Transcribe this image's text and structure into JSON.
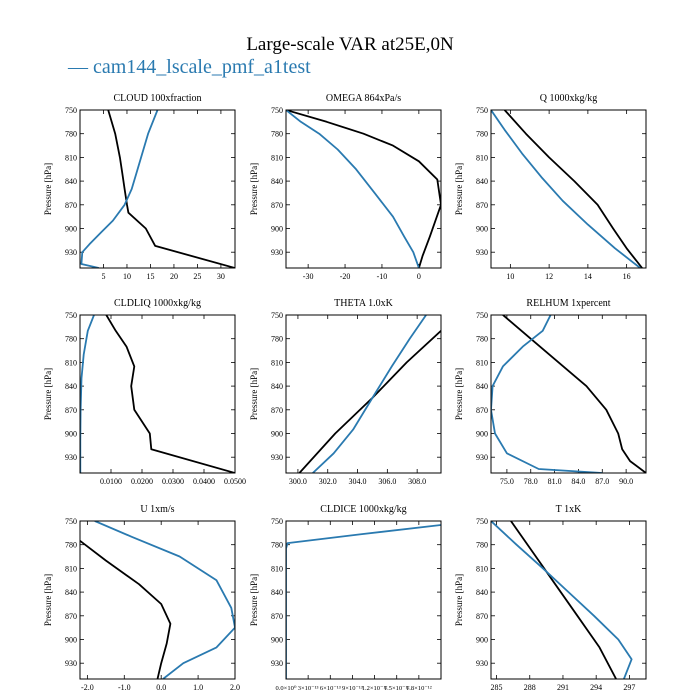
{
  "figure": {
    "title": "Large-scale VAR at25E,0N",
    "legend": {
      "label": "cam144_lscale_pmf_a1test",
      "symbol": "—",
      "color": "#2a7ab0"
    },
    "ref_color": "#000000"
  },
  "chart_data": [
    {
      "type": "line",
      "title": "CLOUD  100xfraction",
      "ylabel": "Pressure [hPa]",
      "xlim": [
        0,
        33
      ],
      "ylim": [
        750,
        950
      ],
      "xticks": [
        5,
        10,
        15,
        20,
        25,
        30
      ],
      "xtick_labels": [
        "5",
        "10",
        "15",
        "20",
        "25",
        "30"
      ],
      "yticks": [
        750,
        780,
        810,
        840,
        870,
        900,
        930
      ],
      "ytick_labels": [
        "750",
        "780",
        "810",
        "840",
        "870",
        "900",
        "930"
      ],
      "series": [
        {
          "name": "ref",
          "x": [
            6.0,
            7.5,
            8.5,
            9.0,
            9.5,
            10.0,
            10.3,
            14.0,
            16.0,
            33.0
          ],
          "y": [
            750,
            780,
            810,
            830,
            850,
            870,
            880,
            900,
            922,
            950
          ]
        },
        {
          "name": "cam144_lscale_pmf_a1test",
          "x": [
            16.5,
            14.5,
            13.0,
            12.0,
            11.0,
            9.5,
            7.0,
            4.5,
            2.0,
            0.5,
            0.3,
            4.0
          ],
          "y": [
            750,
            780,
            810,
            830,
            850,
            870,
            890,
            905,
            920,
            930,
            945,
            950
          ]
        }
      ]
    },
    {
      "type": "line",
      "title": "OMEGA  864xPa/s",
      "ylabel": "Pressure [hPa]",
      "xlim": [
        -36,
        6
      ],
      "ylim": [
        750,
        950
      ],
      "xticks": [
        -30,
        -20,
        -10,
        0
      ],
      "xtick_labels": [
        "-30",
        "-20",
        "-10",
        "0"
      ],
      "yticks": [
        750,
        780,
        810,
        840,
        870,
        900,
        930
      ],
      "ytick_labels": [
        "750",
        "780",
        "810",
        "840",
        "870",
        "900",
        "930"
      ],
      "series": [
        {
          "name": "ref",
          "x": [
            -36,
            -25,
            -15,
            -7,
            0,
            5,
            6,
            3,
            1,
            0
          ],
          "y": [
            750,
            765,
            780,
            795,
            815,
            838,
            870,
            910,
            935,
            950
          ]
        },
        {
          "name": "cam144_lscale_pmf_a1test",
          "x": [
            -36,
            -32,
            -27,
            -22,
            -17,
            -12,
            -7,
            -4,
            -1.5,
            0
          ],
          "y": [
            750,
            765,
            780,
            800,
            825,
            855,
            885,
            910,
            930,
            950
          ]
        }
      ]
    },
    {
      "type": "line",
      "title": "Q  1000xkg/kg",
      "ylabel": "Pressure [hPa]",
      "xlim": [
        9,
        17
      ],
      "ylim": [
        750,
        950
      ],
      "xticks": [
        10,
        12,
        14,
        16
      ],
      "xtick_labels": [
        "10",
        "12",
        "14",
        "16"
      ],
      "yticks": [
        750,
        780,
        810,
        840,
        870,
        900,
        930
      ],
      "ytick_labels": [
        "750",
        "780",
        "810",
        "840",
        "870",
        "900",
        "930"
      ],
      "series": [
        {
          "name": "ref",
          "x": [
            9.7,
            10.8,
            12.0,
            13.3,
            14.5,
            15.3,
            16.0,
            16.8
          ],
          "y": [
            750,
            780,
            810,
            840,
            870,
            900,
            925,
            950
          ]
        },
        {
          "name": "cam144_lscale_pmf_a1test",
          "x": [
            9.0,
            9.7,
            10.6,
            11.6,
            12.7,
            14.0,
            15.4,
            16.7
          ],
          "y": [
            750,
            775,
            805,
            835,
            865,
            895,
            925,
            950
          ]
        }
      ]
    },
    {
      "type": "line",
      "title": "CLDLIQ  1000xkg/kg",
      "ylabel": "Pressure [hPa]",
      "xlim": [
        0,
        0.05
      ],
      "ylim": [
        750,
        950
      ],
      "xticks": [
        0.01,
        0.02,
        0.03,
        0.04,
        0.05
      ],
      "xtick_labels": [
        "0.0100",
        "0.0200",
        "0.0300",
        "0.0400",
        "0.0500"
      ],
      "yticks": [
        750,
        780,
        810,
        840,
        870,
        900,
        930
      ],
      "ytick_labels": [
        "750",
        "780",
        "810",
        "840",
        "870",
        "900",
        "930"
      ],
      "series": [
        {
          "name": "ref",
          "x": [
            0.0085,
            0.0115,
            0.015,
            0.0175,
            0.0165,
            0.0175,
            0.0225,
            0.023,
            0.05
          ],
          "y": [
            750,
            770,
            790,
            815,
            840,
            870,
            900,
            920,
            950
          ]
        },
        {
          "name": "cam144_lscale_pmf_a1test",
          "x": [
            0.0045,
            0.0025,
            0.0012,
            0.0005,
            0.0002,
            0.0001,
            0.0001
          ],
          "y": [
            750,
            770,
            800,
            830,
            870,
            910,
            950
          ]
        }
      ]
    },
    {
      "type": "line",
      "title": "THETA  1.0xK",
      "ylabel": "Pressure [hPa]",
      "xlim": [
        299.2,
        309.6
      ],
      "ylim": [
        750,
        950
      ],
      "xticks": [
        300.0,
        302.0,
        304.0,
        306.0,
        308.0
      ],
      "xtick_labels": [
        "300.0",
        "302.0",
        "304.0",
        "306.0",
        "308.0"
      ],
      "yticks": [
        750,
        780,
        810,
        840,
        870,
        900,
        930
      ],
      "ytick_labels": [
        "750",
        "780",
        "810",
        "840",
        "870",
        "900",
        "930"
      ],
      "series": [
        {
          "name": "ref",
          "x": [
            309.6,
            307.3,
            305.0,
            302.5,
            300.1
          ],
          "y": [
            770,
            810,
            855,
            900,
            950
          ]
        },
        {
          "name": "cam144_lscale_pmf_a1test",
          "x": [
            308.6,
            307.5,
            306.3,
            305.0,
            303.7,
            302.4,
            301.0
          ],
          "y": [
            750,
            780,
            815,
            855,
            895,
            925,
            950
          ]
        }
      ]
    },
    {
      "type": "line",
      "title": "RELHUM  1xpercent",
      "ylabel": "Pressure [hPa]",
      "xlim": [
        73,
        92.5
      ],
      "ylim": [
        750,
        950
      ],
      "xticks": [
        75.0,
        78.0,
        81.0,
        84.0,
        87.0,
        90.0
      ],
      "xtick_labels": [
        "75.0",
        "78.0",
        "81.0",
        "84.0",
        "87.0",
        "90.0"
      ],
      "yticks": [
        750,
        780,
        810,
        840,
        870,
        900,
        930
      ],
      "ytick_labels": [
        "750",
        "780",
        "810",
        "840",
        "870",
        "900",
        "930"
      ],
      "series": [
        {
          "name": "ref",
          "x": [
            74.5,
            78.0,
            81.5,
            85.0,
            87.5,
            89.0,
            89.5,
            90.5,
            92.5
          ],
          "y": [
            750,
            780,
            810,
            840,
            870,
            900,
            920,
            935,
            950
          ]
        },
        {
          "name": "cam144_lscale_pmf_a1test",
          "x": [
            80.5,
            79.5,
            77.0,
            74.5,
            73.2,
            73.0,
            73.5,
            75.0,
            79.0,
            87.0
          ],
          "y": [
            750,
            770,
            790,
            815,
            840,
            870,
            900,
            925,
            945,
            950
          ]
        }
      ]
    },
    {
      "type": "line",
      "title": "U  1xm/s",
      "ylabel": "Pressure [hPa]",
      "xlim": [
        -2.2,
        2.0
      ],
      "ylim": [
        750,
        950
      ],
      "xticks": [
        -2.0,
        -1.0,
        0.0,
        1.0,
        2.0
      ],
      "xtick_labels": [
        "-2.0",
        "-1.0",
        "0.0",
        "1.0",
        "2.0"
      ],
      "yticks": [
        750,
        780,
        810,
        840,
        870,
        900,
        930
      ],
      "ytick_labels": [
        "750",
        "780",
        "810",
        "840",
        "870",
        "900",
        "930"
      ],
      "series": [
        {
          "name": "ref",
          "x": [
            -2.2,
            -1.5,
            -0.6,
            0.0,
            0.25,
            0.15,
            0.0,
            -0.1
          ],
          "y": [
            775,
            800,
            830,
            855,
            880,
            905,
            930,
            950
          ]
        },
        {
          "name": "cam144_lscale_pmf_a1test",
          "x": [
            -1.8,
            -0.8,
            0.5,
            1.5,
            1.9,
            2.0,
            1.5,
            0.6,
            0.05
          ],
          "y": [
            750,
            770,
            795,
            825,
            860,
            885,
            910,
            930,
            950
          ]
        }
      ]
    },
    {
      "type": "line",
      "title": "CLDICE  1000xkg/kg",
      "ylabel": "Pressure [hPa]",
      "xlim": [
        0,
        2.1e-12
      ],
      "ylim": [
        750,
        950
      ],
      "xticks": [
        0,
        3e-13,
        6e-13,
        9e-13,
        1.2e-12,
        1.5e-12,
        1.8e-12
      ],
      "xtick_labels": [
        "0.0×10⁰",
        "3×10⁻¹³",
        "6×10⁻¹³",
        "9×10⁻¹³",
        "1.2×10⁻¹²",
        "1.5×10⁻¹²",
        "1.8×10⁻¹²"
      ],
      "yticks": [
        750,
        780,
        810,
        840,
        870,
        900,
        930
      ],
      "ytick_labels": [
        "750",
        "780",
        "810",
        "840",
        "870",
        "900",
        "930"
      ],
      "series": [
        {
          "name": "cam144_lscale_pmf_a1test",
          "x": [
            2.1e-12,
            1e-12,
            2e-14,
            0,
            0
          ],
          "y": [
            755,
            767,
            778,
            785,
            950
          ]
        }
      ]
    },
    {
      "type": "line",
      "title": "T  1xK",
      "ylabel": "Pressure [hPa]",
      "xlim": [
        284.5,
        298.5
      ],
      "ylim": [
        750,
        950
      ],
      "xticks": [
        285,
        288,
        291,
        294,
        297
      ],
      "xtick_labels": [
        "285",
        "288",
        "291",
        "294",
        "297"
      ],
      "yticks": [
        750,
        780,
        810,
        840,
        870,
        900,
        930
      ],
      "ytick_labels": [
        "750",
        "780",
        "810",
        "840",
        "870",
        "900",
        "930"
      ],
      "series": [
        {
          "name": "ref",
          "x": [
            286.3,
            288.3,
            290.3,
            292.3,
            294.3,
            295.8
          ],
          "y": [
            750,
            790,
            830,
            870,
            910,
            950
          ]
        },
        {
          "name": "cam144_lscale_pmf_a1test",
          "x": [
            284.5,
            286.8,
            289.2,
            291.5,
            293.8,
            296.0,
            297.2,
            296.5
          ],
          "y": [
            750,
            780,
            810,
            840,
            870,
            900,
            925,
            950
          ]
        }
      ]
    }
  ]
}
